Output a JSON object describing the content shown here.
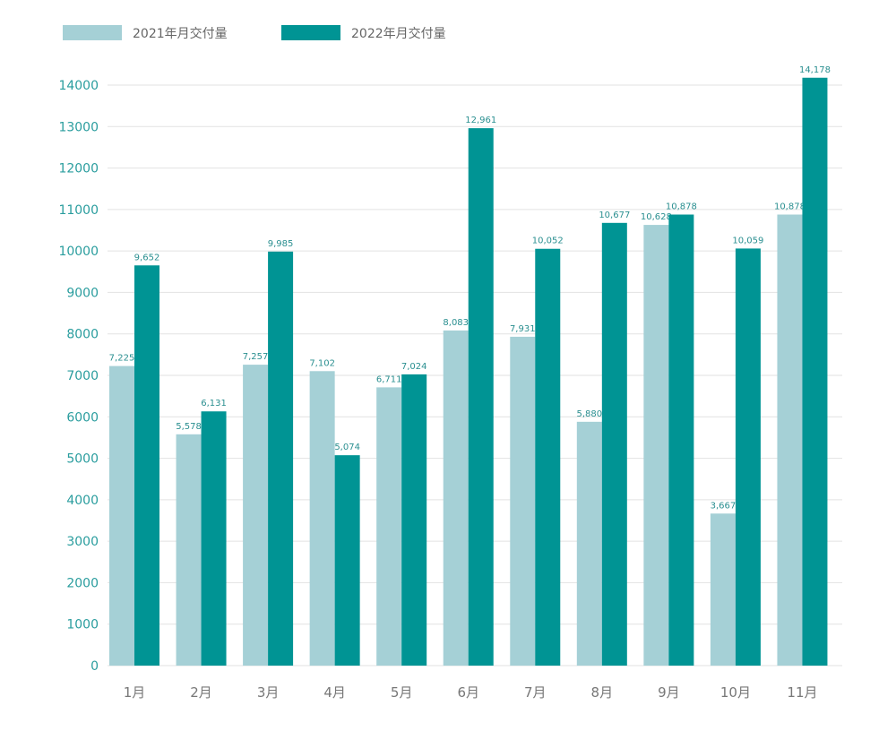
{
  "chart_data": {
    "type": "bar",
    "title": "",
    "xlabel": "",
    "ylabel": "",
    "categories": [
      "1月",
      "2月",
      "3月",
      "4月",
      "5月",
      "6月",
      "7月",
      "8月",
      "9月",
      "10月",
      "11月"
    ],
    "series": [
      {
        "name": "2021年月交付量",
        "color": "#a5d0d6",
        "values": [
          7225,
          5578,
          7257,
          7102,
          6711,
          8083,
          7931,
          5880,
          10628,
          3667,
          10878
        ],
        "labels": [
          "7,225",
          "5,578",
          "7,257",
          "7,102",
          "6,711",
          "8,083",
          "7,931",
          "5,880",
          "10,628",
          "3,667",
          "10,878"
        ]
      },
      {
        "name": "2022年月交付量",
        "color": "#009494",
        "values": [
          9652,
          6131,
          9985,
          5074,
          7024,
          12961,
          10052,
          10677,
          10878,
          10059,
          14178
        ],
        "labels": [
          "9,652",
          "6,131",
          "9,985",
          "5,074",
          "7,024",
          "12,961",
          "10,052",
          "10,677",
          "10,878",
          "10,059",
          "14,178"
        ]
      }
    ],
    "ylim": [
      0,
      14000
    ],
    "yticks": [
      "0",
      "1000",
      "2000",
      "3000",
      "4000",
      "5000",
      "6000",
      "7000",
      "8000",
      "9000",
      "10000",
      "11000",
      "12000",
      "13000",
      "14000"
    ],
    "grid": true,
    "legend_position": "top-left"
  }
}
